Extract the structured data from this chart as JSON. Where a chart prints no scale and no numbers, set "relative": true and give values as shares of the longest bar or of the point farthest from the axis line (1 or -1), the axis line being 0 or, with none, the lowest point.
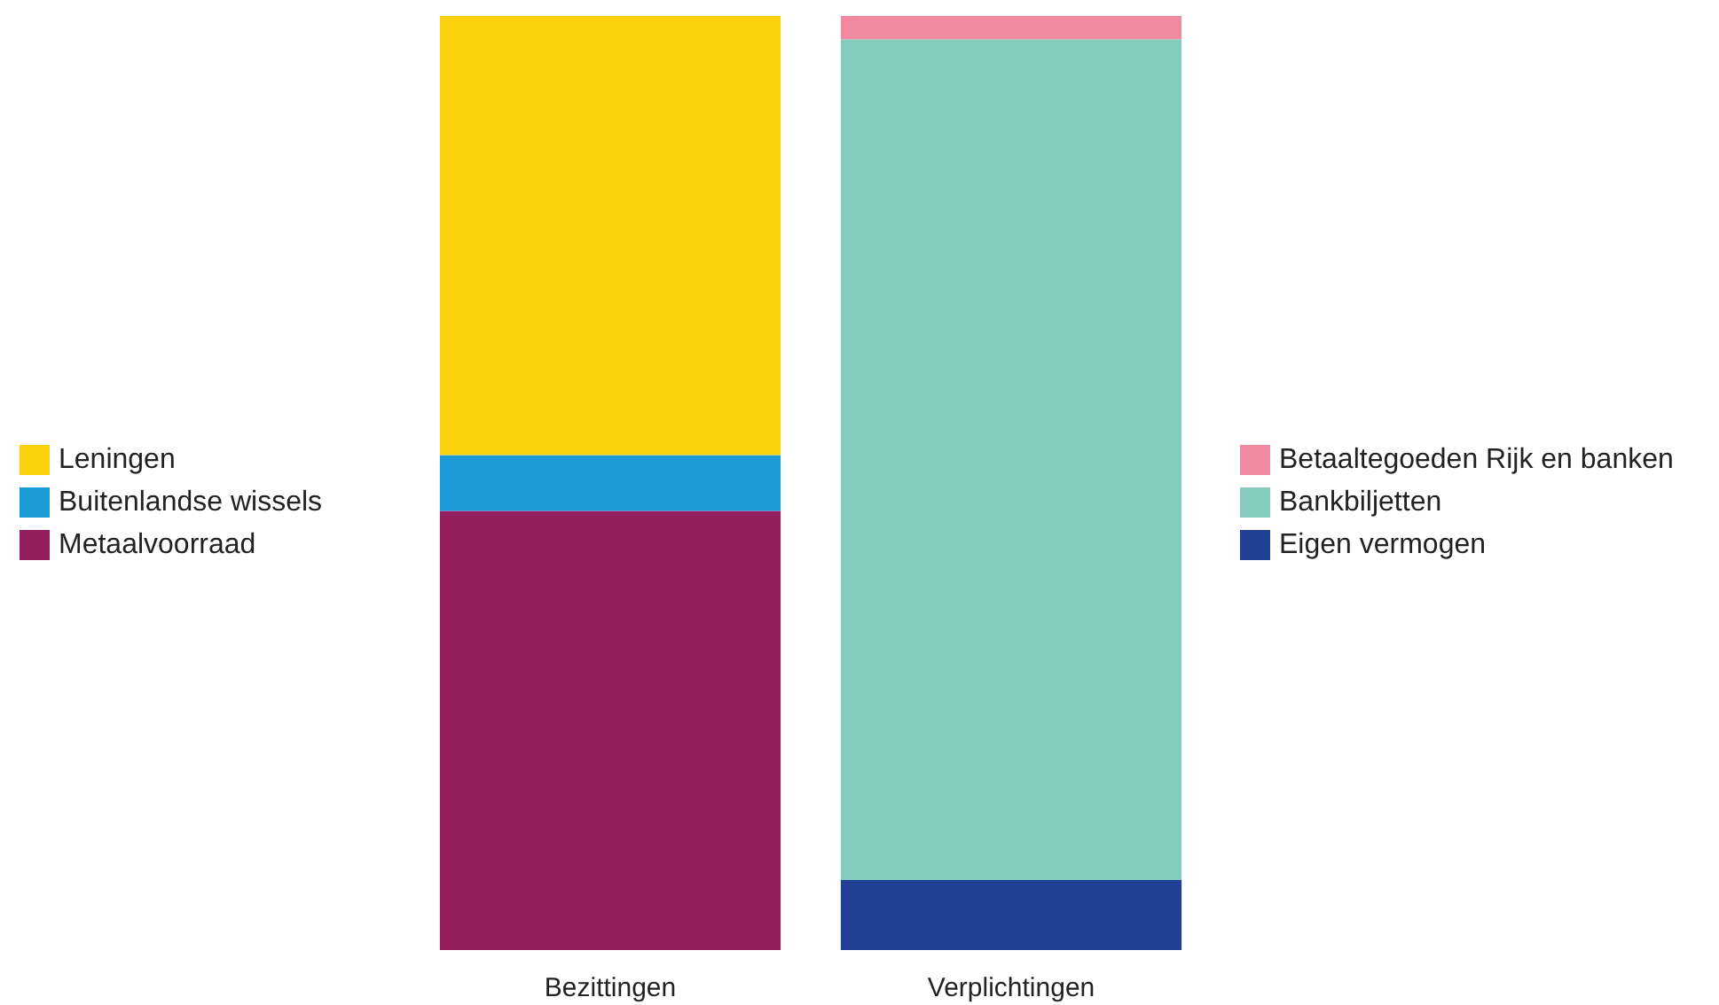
{
  "chart_data": {
    "type": "bar",
    "stacked": true,
    "relative": true,
    "legend": "left",
    "categories": [
      "Bezittingen",
      "Verplichtingen"
    ],
    "series": [
      {
        "name": "Metaalvoorraad",
        "color": "#931e5e",
        "values": [
          0.47,
          null
        ]
      },
      {
        "name": "Buitenlandse wissels",
        "color": "#1a9bd7",
        "values": [
          0.06,
          null
        ]
      },
      {
        "name": "Leningen",
        "color": "#fcd20f",
        "values": [
          0.47,
          null
        ]
      },
      {
        "name": "Eigen vermogen",
        "color": "#213f93",
        "values": [
          null,
          0.075
        ]
      },
      {
        "name": "Bankbiljetten",
        "color": "#84cdbe",
        "values": [
          null,
          0.9
        ]
      },
      {
        "name": "Betaaltegoeden Rijk en banken",
        "color": "#f08aa1",
        "values": [
          null,
          0.025
        ]
      }
    ]
  }
}
